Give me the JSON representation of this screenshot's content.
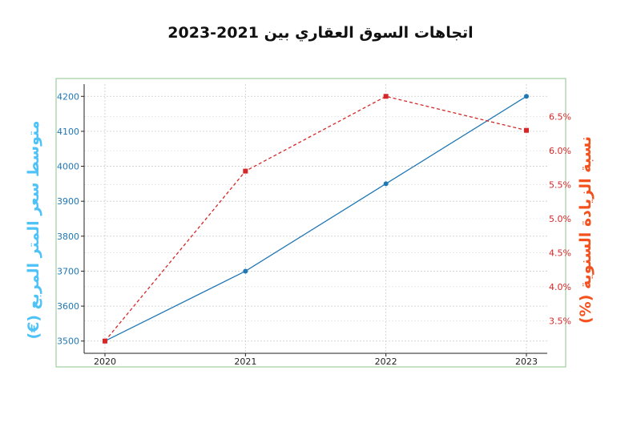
{
  "chart_data": {
    "type": "line",
    "title": "اتجاهات السوق العقاري بين 2021-2023",
    "x": [
      2020,
      2021,
      2022,
      2023
    ],
    "x_tick_labels": [
      "2020",
      "2021",
      "2022",
      "2023"
    ],
    "series": [
      {
        "values": [
          3500,
          3700,
          3950,
          4200
        ],
        "axis": "left",
        "color": "#1f77b4",
        "style": "solid",
        "marker": "circle"
      },
      {
        "values": [
          3.2,
          5.7,
          6.8,
          6.3
        ],
        "axis": "right",
        "color": "#d62728",
        "style": "dashed",
        "marker": "square"
      }
    ],
    "y_left": {
      "label": "متوسط سعر المتر المربع (€)",
      "label_color": "#4fc3f7",
      "tick_color": "#1f77b4",
      "range": [
        3465,
        4235
      ],
      "ticks": [
        3500,
        3600,
        3700,
        3800,
        3900,
        4000,
        4100,
        4200
      ],
      "tick_labels": [
        "3500",
        "3600",
        "3700",
        "3800",
        "3900",
        "4000",
        "4100",
        "4200"
      ]
    },
    "y_right": {
      "label": "نسبة الزيادة السنوية (%)",
      "label_color": "#f4511e",
      "tick_color": "#d62728",
      "range": [
        3.02,
        6.98
      ],
      "ticks": [
        3.5,
        4.0,
        4.5,
        5.0,
        5.5,
        6.0,
        6.5
      ],
      "tick_labels": [
        "3.5%",
        "4.0%",
        "4.5%",
        "5.0%",
        "5.5%",
        "6.0%",
        "6.5%"
      ]
    },
    "grid": true,
    "frame_color": "#8bc48f"
  }
}
